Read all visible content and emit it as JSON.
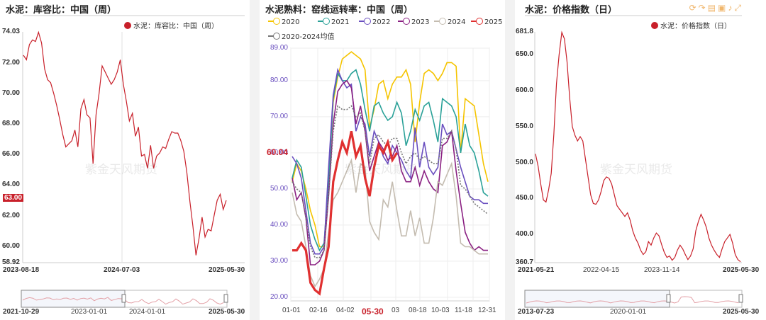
{
  "chart_data": [
    {
      "type": "line",
      "title": "水泥：库容比：中国（周）",
      "legend": [
        "水泥：库容比：中国（周）"
      ],
      "legend_placement": "top-right",
      "color": "#c8202a",
      "y_ticks": [
        "74.03",
        "72.00",
        "70.00",
        "68.00",
        "66.00",
        "64.00",
        "62.00",
        "60.00",
        "58.92"
      ],
      "ylim": [
        58.92,
        74.03
      ],
      "current_value_label": "63.00",
      "x_ticks": [
        "2023-08-18",
        "2024-07-03",
        "2025-05-30"
      ],
      "navigator_ticks": [
        "2021-10-29",
        "2023-01-01",
        "2024-01-01",
        "2025-05-30"
      ],
      "watermark": "紫金天风期货",
      "series": [
        {
          "name": "水泥：库容比：中国（周）",
          "values": [
            72.5,
            72.2,
            73.2,
            73.5,
            73.4,
            74.0,
            73.3,
            71.6,
            70.9,
            70.7,
            70.0,
            69.2,
            68.3,
            67.3,
            66.5,
            66.7,
            66.9,
            67.6,
            66.5,
            69.0,
            69.6,
            68.6,
            68.4,
            65.4,
            68.6,
            70.0,
            71.8,
            71.4,
            71.0,
            70.6,
            70.9,
            71.4,
            72.2,
            70.6,
            69.5,
            68.2,
            68.7,
            67.2,
            67.8,
            65.9,
            66.0,
            65.1,
            66.6,
            65.1,
            65.9,
            66.1,
            66.5,
            66.4,
            67.0,
            67.5,
            67.4,
            67.4,
            66.9,
            66.2,
            64.8,
            62.9,
            61.3,
            59.4,
            60.5,
            61.9,
            60.6,
            61.1,
            61.0,
            62.0,
            63.0,
            63.4,
            62.4,
            63.0
          ]
        }
      ]
    },
    {
      "type": "line",
      "title": "水泥熟料：窑线运转率：中国（周）",
      "legend_placement": "top",
      "y_ticks": [
        "89.00",
        "80.00",
        "70.00",
        "60.00",
        "50.00",
        "40.00",
        "30.00",
        "20.00"
      ],
      "ylim": [
        19,
        89
      ],
      "x_ticks": [
        "01-01",
        "02-16",
        "04-02",
        "05-30",
        "03",
        "08-18",
        "10-03",
        "11-18",
        "12-31"
      ],
      "current_value_label": "60.04",
      "current_date_label": "05-30",
      "watermark": "紫金天风期货",
      "series": [
        {
          "name": "2020",
          "color": "#f5c400",
          "values": [
            52,
            57,
            55,
            50,
            44,
            40,
            34,
            34,
            53,
            74,
            81,
            86,
            87,
            88,
            87,
            86,
            83,
            67,
            72,
            79,
            80,
            75,
            79,
            81,
            81,
            83,
            79,
            63,
            74,
            82,
            83,
            82,
            80,
            82,
            85,
            85,
            84,
            60,
            75,
            74,
            73,
            65,
            57,
            52
          ]
        },
        {
          "name": "2021",
          "color": "#2aa198",
          "values": [
            53,
            58,
            56,
            48,
            40,
            36,
            33,
            35,
            52,
            75,
            82,
            80,
            80,
            82,
            83,
            79,
            72,
            66,
            73,
            74,
            71,
            69,
            70,
            74,
            71,
            62,
            66,
            72,
            69,
            73,
            74,
            69,
            63,
            75,
            74,
            73,
            70,
            60,
            68,
            62,
            60,
            55,
            49,
            48
          ]
        },
        {
          "name": "2022",
          "color": "#6a4fbf",
          "values": [
            59,
            57,
            53,
            44,
            35,
            32,
            32,
            34,
            56,
            76,
            83,
            80,
            78,
            79,
            66,
            70,
            68,
            59,
            66,
            63,
            59,
            57,
            62,
            60,
            58,
            55,
            53,
            67,
            56,
            63,
            56,
            54,
            56,
            68,
            65,
            66,
            61,
            56,
            52,
            48,
            47,
            47,
            46,
            46
          ]
        },
        {
          "name": "2023",
          "color": "#8a2082",
          "values": [
            53,
            47,
            49,
            42,
            29,
            29,
            30,
            33,
            48,
            68,
            77,
            79,
            80,
            78,
            68,
            73,
            66,
            55,
            59,
            63,
            61,
            58,
            59,
            62,
            55,
            52,
            52,
            56,
            51,
            55,
            52,
            50,
            49,
            62,
            63,
            66,
            55,
            46,
            38,
            35,
            33,
            34,
            33,
            33
          ]
        },
        {
          "name": "2024",
          "color": "#c4bcb0",
          "values": [
            49,
            43,
            41,
            34,
            26,
            23,
            25,
            28,
            38,
            47,
            49,
            52,
            55,
            58,
            49,
            57,
            56,
            41,
            38,
            36,
            47,
            45,
            52,
            44,
            37,
            37,
            44,
            37,
            42,
            35,
            35,
            42,
            52,
            51,
            54,
            57,
            48,
            35,
            34,
            34,
            33,
            32,
            32,
            32
          ]
        },
        {
          "name": "2025",
          "color": "#e03030",
          "values": [
            33,
            33,
            35,
            33,
            24,
            22,
            21,
            28,
            34,
            52,
            58,
            63,
            60,
            66,
            59,
            62,
            53,
            48,
            56,
            62,
            60,
            63,
            58,
            60
          ]
        },
        {
          "name": "2020-2024均值",
          "color": "#777777",
          "dashed": true,
          "values": [
            52,
            50,
            49,
            42,
            34,
            31,
            31,
            33,
            48,
            66,
            73,
            72,
            72,
            73,
            70,
            71,
            66,
            57,
            64,
            65,
            63,
            62,
            64,
            64,
            60,
            57,
            59,
            60,
            58,
            59,
            58,
            57,
            57,
            64,
            64,
            66,
            61,
            51,
            50,
            48,
            46,
            45,
            44,
            43
          ]
        }
      ]
    },
    {
      "type": "line",
      "title": "水泥：价格指数（日）",
      "legend": [
        "水泥：价格指数（日）"
      ],
      "legend_placement": "top-right",
      "color": "#c8202a",
      "y_ticks": [
        "681.8",
        "650.0",
        "600.0",
        "550.0",
        "500.0",
        "450.0",
        "400.0",
        "360.7"
      ],
      "ylim": [
        360.7,
        681.8
      ],
      "x_ticks": [
        "2021-05-21",
        "2022-04-15",
        "2023-11-14",
        "2025-05-30"
      ],
      "navigator_ticks": [
        "2013-07-23",
        "2020-01-01",
        "2025-05-30"
      ],
      "watermark": "紫金天风期货",
      "series": [
        {
          "name": "水泥：价格指数（日）",
          "values": [
            512,
            495,
            470,
            448,
            445,
            462,
            485,
            540,
            610,
            650,
            681,
            672,
            640,
            590,
            550,
            538,
            530,
            536,
            530,
            505,
            480,
            455,
            443,
            442,
            448,
            460,
            475,
            480,
            478,
            470,
            455,
            440,
            435,
            430,
            425,
            430,
            420,
            405,
            395,
            388,
            378,
            372,
            376,
            390,
            385,
            395,
            402,
            398,
            386,
            375,
            368,
            370,
            364,
            368,
            378,
            385,
            380,
            372,
            365,
            370,
            380,
            405,
            418,
            428,
            420,
            410,
            395,
            385,
            378,
            372,
            368,
            380,
            390,
            395,
            400,
            388,
            372,
            365,
            362
          ]
        }
      ]
    }
  ],
  "toolbar_icons": [
    "refresh-icon",
    "redo-icon",
    "document-icon",
    "save-icon",
    "bell-icon",
    "fullscreen-icon"
  ]
}
